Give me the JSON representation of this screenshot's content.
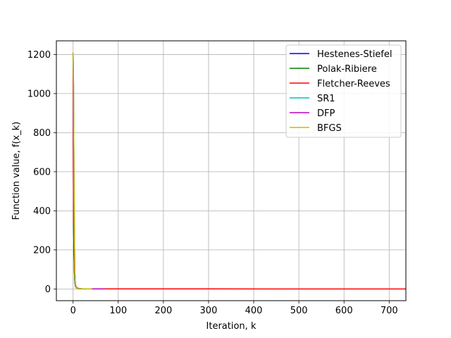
{
  "chart_data": {
    "type": "line",
    "title": "",
    "xlabel": "Iteration, k",
    "ylabel": "Function value, f(x_k)",
    "xlim": [
      -37,
      737
    ],
    "ylim": [
      -60,
      1270
    ],
    "xticks": [
      0,
      100,
      200,
      300,
      400,
      500,
      600,
      700
    ],
    "yticks": [
      0,
      200,
      400,
      600,
      800,
      1000,
      1200
    ],
    "grid": true,
    "legend_position": "top-right",
    "series": [
      {
        "name": "Hestenes-Stiefel",
        "color": "#0000ff",
        "x": [
          0,
          1,
          2,
          3,
          4,
          5,
          7,
          10,
          15,
          20,
          30
        ],
        "y": [
          1210,
          380,
          180,
          80,
          35,
          15,
          6,
          2,
          1,
          0.5,
          0
        ]
      },
      {
        "name": "Polak-Ribiere",
        "color": "#008000",
        "x": [
          0,
          1,
          2,
          3,
          4,
          5,
          7,
          10,
          15,
          20,
          30
        ],
        "y": [
          1210,
          380,
          180,
          80,
          35,
          15,
          6,
          2,
          1,
          0.5,
          0
        ]
      },
      {
        "name": "Fletcher-Reeves",
        "color": "#ff0000",
        "x": [
          0,
          1,
          2,
          3,
          4,
          5,
          6,
          8,
          10,
          15,
          20,
          40,
          100,
          300,
          500,
          670,
          737
        ],
        "y": [
          1210,
          380,
          190,
          120,
          60,
          30,
          15,
          8,
          4,
          2,
          1,
          0.5,
          0.3,
          0.2,
          0.1,
          0,
          0
        ]
      },
      {
        "name": "SR1",
        "color": "#00bfbf",
        "x": [
          0,
          1,
          2,
          3,
          4,
          5,
          6,
          8,
          10,
          20,
          40
        ],
        "y": [
          1210,
          1050,
          600,
          250,
          80,
          30,
          12,
          5,
          2,
          1,
          0
        ]
      },
      {
        "name": "DFP",
        "color": "#bf00bf",
        "x": [
          0,
          1,
          2,
          3,
          4,
          5,
          6,
          8,
          10,
          20,
          40,
          70
        ],
        "y": [
          1210,
          1050,
          600,
          250,
          80,
          30,
          12,
          5,
          2,
          1,
          0.5,
          0
        ]
      },
      {
        "name": "BFGS",
        "color": "#bfbf00",
        "x": [
          0,
          1,
          2,
          3,
          4,
          5,
          6,
          8,
          10,
          20,
          42
        ],
        "y": [
          1210,
          1050,
          600,
          250,
          80,
          30,
          12,
          5,
          2,
          1,
          0
        ]
      }
    ]
  }
}
